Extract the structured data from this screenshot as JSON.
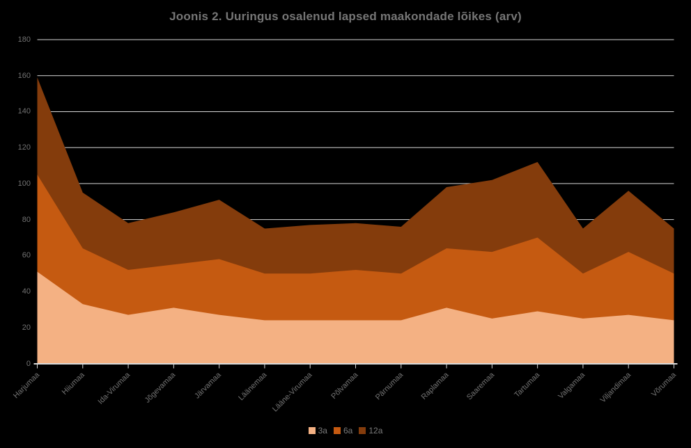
{
  "title": "Joonis 2. Uuringus osalenud lapsed maakondade lõikes (arv)",
  "colors": {
    "background": "#000000",
    "title_text": "#767676",
    "axis_text": "#737373",
    "legend_text": "#7c7c7c",
    "gridline": "#d9d9d9",
    "axis_line": "#d9d9d9",
    "series_3a": "#F4B183",
    "series_6a": "#C55A11",
    "series_12a": "#843C0C"
  },
  "chart_data": {
    "type": "area",
    "stacked": true,
    "title": "Joonis 2. Uuringus osalenud lapsed maakondade lõikes (arv)",
    "xlabel": "",
    "ylabel": "",
    "categories": [
      "Harjumaa",
      "Hiiumaa",
      "Ida-Virumaa",
      "Jõgevamaa",
      "Järvamaa",
      "Läänemaa",
      "Lääne-Virumaa",
      "Põlvamaa",
      "Pärnumaa",
      "Raplamaa",
      "Saaremaa",
      "Tartumaa",
      "Valgamaa",
      "Viljandimaa",
      "Võrumaa"
    ],
    "series": [
      {
        "name": "3a",
        "color": "#F4B183",
        "values": [
          51,
          33,
          27,
          31,
          27,
          24,
          24,
          24,
          24,
          31,
          25,
          29,
          25,
          27,
          24
        ]
      },
      {
        "name": "6a",
        "color": "#C55A11",
        "values": [
          54,
          31,
          25,
          24,
          31,
          26,
          26,
          28,
          26,
          33,
          37,
          41,
          25,
          35,
          26
        ]
      },
      {
        "name": "12a",
        "color": "#843C0C",
        "values": [
          54,
          31,
          26,
          29,
          33,
          25,
          27,
          26,
          26,
          34,
          40,
          42,
          25,
          34,
          25
        ]
      }
    ],
    "stacked_totals": [
      159,
      95,
      78,
      84,
      91,
      75,
      77,
      78,
      76,
      98,
      102,
      112,
      75,
      96,
      75
    ],
    "ylim": [
      0,
      180
    ],
    "y_ticks": [
      0,
      20,
      40,
      60,
      80,
      100,
      120,
      140,
      160,
      180
    ],
    "grid": true,
    "legend_position": "bottom",
    "legend_labels": [
      "3a",
      "6a",
      "12a"
    ]
  }
}
